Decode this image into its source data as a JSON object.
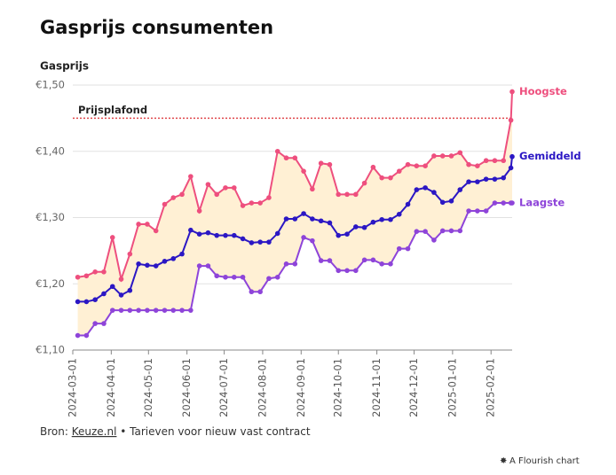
{
  "chart_data": {
    "type": "line",
    "title": "Gasprijs consumenten",
    "y_axis_title": "Gasprijs",
    "x": [
      "2024-03-05",
      "2024-03-12",
      "2024-03-19",
      "2024-03-26",
      "2024-04-02",
      "2024-04-09",
      "2024-04-16",
      "2024-04-23",
      "2024-04-30",
      "2024-05-07",
      "2024-05-14",
      "2024-05-21",
      "2024-05-28",
      "2024-06-04",
      "2024-06-11",
      "2024-06-18",
      "2024-06-25",
      "2024-07-02",
      "2024-07-09",
      "2024-07-16",
      "2024-07-23",
      "2024-07-30",
      "2024-08-06",
      "2024-08-13",
      "2024-08-20",
      "2024-08-27",
      "2024-09-03",
      "2024-09-10",
      "2024-09-17",
      "2024-09-24",
      "2024-10-01",
      "2024-10-08",
      "2024-10-15",
      "2024-10-22",
      "2024-10-29",
      "2024-11-05",
      "2024-11-12",
      "2024-11-19",
      "2024-11-26",
      "2024-12-03",
      "2024-12-10",
      "2024-12-17",
      "2024-12-24",
      "2024-12-31",
      "2025-01-07",
      "2025-01-14",
      "2025-01-21",
      "2025-01-28",
      "2025-02-04",
      "2025-02-11",
      "2025-02-17",
      "2025-02-18"
    ],
    "series": [
      {
        "name": "Hoogste",
        "color": "#ee4f7e",
        "values": [
          1.21,
          1.212,
          1.218,
          1.218,
          1.27,
          1.207,
          1.245,
          1.29,
          1.29,
          1.28,
          1.32,
          1.33,
          1.335,
          1.362,
          1.31,
          1.35,
          1.335,
          1.345,
          1.345,
          1.318,
          1.322,
          1.322,
          1.33,
          1.4,
          1.39,
          1.39,
          1.37,
          1.343,
          1.382,
          1.38,
          1.335,
          1.335,
          1.335,
          1.352,
          1.376,
          1.36,
          1.36,
          1.37,
          1.38,
          1.378,
          1.378,
          1.393,
          1.393,
          1.393,
          1.398,
          1.38,
          1.378,
          1.386,
          1.386,
          1.386,
          1.447,
          1.49
        ]
      },
      {
        "name": "Gemiddeld",
        "color": "#2b17c4",
        "values": [
          1.173,
          1.173,
          1.176,
          1.185,
          1.196,
          1.183,
          1.19,
          1.23,
          1.228,
          1.227,
          1.234,
          1.238,
          1.245,
          1.281,
          1.275,
          1.277,
          1.273,
          1.273,
          1.273,
          1.268,
          1.262,
          1.263,
          1.263,
          1.276,
          1.298,
          1.298,
          1.306,
          1.298,
          1.295,
          1.292,
          1.273,
          1.275,
          1.286,
          1.285,
          1.293,
          1.297,
          1.297,
          1.305,
          1.32,
          1.342,
          1.345,
          1.338,
          1.323,
          1.325,
          1.342,
          1.354,
          1.354,
          1.358,
          1.358,
          1.36,
          1.375,
          1.392
        ]
      },
      {
        "name": "Laagste",
        "color": "#8e44d9",
        "values": [
          1.122,
          1.122,
          1.14,
          1.14,
          1.16,
          1.16,
          1.16,
          1.16,
          1.16,
          1.16,
          1.16,
          1.16,
          1.16,
          1.16,
          1.227,
          1.227,
          1.212,
          1.21,
          1.21,
          1.21,
          1.188,
          1.188,
          1.208,
          1.21,
          1.23,
          1.23,
          1.27,
          1.265,
          1.235,
          1.235,
          1.22,
          1.22,
          1.22,
          1.236,
          1.236,
          1.23,
          1.23,
          1.253,
          1.253,
          1.279,
          1.279,
          1.266,
          1.28,
          1.28,
          1.28,
          1.31,
          1.31,
          1.31,
          1.322,
          1.322,
          1.322,
          1.322
        ]
      }
    ],
    "band_color": "#fff0d4",
    "reference_line": {
      "label": "Prijsplafond",
      "value": 1.45,
      "color": "#e0474c"
    },
    "xlim": [
      "2024-03-01",
      "2025-02-18"
    ],
    "xticks": [
      "2024-03-01",
      "2024-04-01",
      "2024-05-01",
      "2024-06-01",
      "2024-07-01",
      "2024-08-01",
      "2024-09-01",
      "2024-10-01",
      "2024-11-01",
      "2024-12-01",
      "2025-01-01",
      "2025-02-01"
    ],
    "ylim": [
      1.1,
      1.5
    ],
    "yticks": [
      {
        "value": 1.1,
        "label": "€1,10"
      },
      {
        "value": 1.2,
        "label": "€1,20"
      },
      {
        "value": 1.3,
        "label": "€1,30"
      },
      {
        "value": 1.4,
        "label": "€1,40"
      },
      {
        "value": 1.5,
        "label": "€1,50"
      }
    ],
    "grid": true,
    "source_prefix": "Bron:",
    "source_link": "Keuze.nl",
    "source_suffix": "• Tarieven voor nieuw vast contract",
    "credit": "A Flourish chart"
  }
}
